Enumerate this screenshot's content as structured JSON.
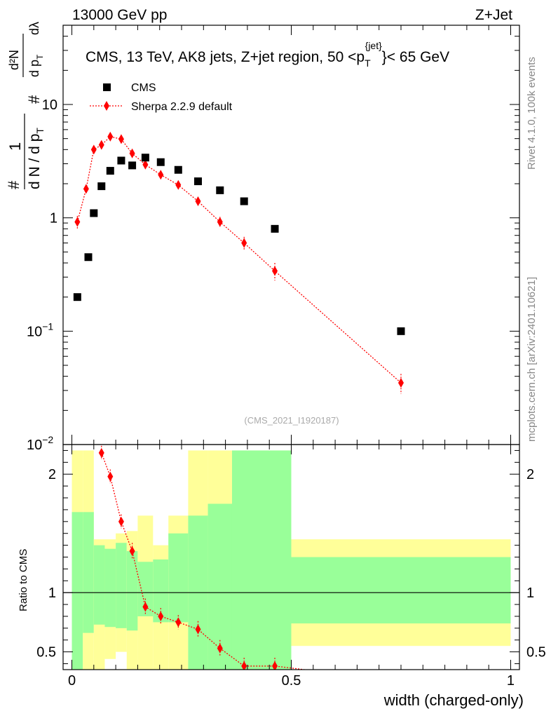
{
  "header": {
    "left": "13000 GeV pp",
    "right": "Z+Jet"
  },
  "side": {
    "rivet": "Rivet 4.1.0,  100k events",
    "mcplots": "mcplots.cern.ch [arXiv:2401.10621]"
  },
  "labels": {
    "analysis_id": "(CMS_2021_I1920187)",
    "ratio_ylabel": "Ratio to CMS",
    "xlabel": "width (charged-only)"
  },
  "legend": {
    "data": "CMS",
    "mc": "Sherpa 2.2.9 default"
  },
  "colors": {
    "data": "#000000",
    "mc": "#ff0000",
    "band_inner": "#99ff99",
    "band_outer": "#ffff99",
    "frame": "#000000",
    "side_text": "#888888"
  },
  "chart_data": [
    {
      "type": "scatter",
      "title": "CMS, 13 TeV, AK8 jets, Z+jet region, 50 < pT jet < 65 GeV",
      "title_parts": {
        "main": "CMS, 13 TeV, AK8 jets, Z+jet region, 50 <p",
        "sub": "T",
        "sup": "{jet}",
        "tail": "}< 65 GeV"
      },
      "ylabel_parts": {
        "frac_num": "1",
        "frac_den": "d N / d p",
        "den_sub": "T",
        "hash": "#",
        "d2n": "d²N",
        "dpt": "d p",
        "dpt_sub": "T",
        "dlambda": "dλ"
      },
      "yscale": "log",
      "xlim": [
        -0.02,
        1.02
      ],
      "ylim": [
        0.01,
        50
      ],
      "y_ticks": [
        {
          "value": 10,
          "label": "10"
        },
        {
          "value": 1,
          "label": "1"
        },
        {
          "value": 0.1,
          "label": "10",
          "exp": "−1"
        },
        {
          "value": 0.01,
          "label": "10",
          "exp": "−2"
        }
      ],
      "series": [
        {
          "name": "CMS",
          "marker": "square",
          "x": [
            0.0125,
            0.0375,
            0.05,
            0.0675,
            0.0875,
            0.1125,
            0.1375,
            0.1675,
            0.2025,
            0.2425,
            0.2875,
            0.3375,
            0.3925,
            0.4625,
            0.75
          ],
          "y": [
            0.2,
            0.45,
            1.1,
            1.9,
            2.6,
            3.2,
            2.9,
            3.4,
            3.1,
            2.65,
            2.1,
            1.75,
            1.4,
            0.8,
            0.1
          ]
        },
        {
          "name": "Sherpa 2.2.9 default",
          "marker": "diamond",
          "line": "dotted",
          "x": [
            0.0125,
            0.0325,
            0.05,
            0.0675,
            0.0875,
            0.1125,
            0.1375,
            0.1675,
            0.2025,
            0.2425,
            0.2875,
            0.3375,
            0.3925,
            0.4625,
            0.75
          ],
          "y": [
            0.92,
            1.8,
            4.0,
            4.4,
            5.2,
            4.95,
            3.7,
            2.95,
            2.4,
            1.95,
            1.4,
            0.92,
            0.6,
            0.34,
            0.035
          ],
          "err": [
            0.12,
            0.12,
            0.2,
            0.25,
            0.2,
            0.2,
            0.15,
            0.15,
            0.12,
            0.1,
            0.12,
            0.1,
            0.08,
            0.06,
            0.007
          ]
        }
      ]
    },
    {
      "type": "line",
      "title": "Ratio to CMS",
      "xlabel": "width (charged-only)",
      "ylabel": "Ratio to CMS",
      "xlim": [
        -0.02,
        1.02
      ],
      "ylim": [
        0.35,
        2.25
      ],
      "x_ticks": [
        {
          "value": 0,
          "label": "0"
        },
        {
          "value": 0.5,
          "label": "0.5"
        },
        {
          "value": 1,
          "label": "1"
        }
      ],
      "y_ticks": [
        {
          "value": 2,
          "label": "2"
        },
        {
          "value": 1,
          "label": "1"
        },
        {
          "value": 0.5,
          "label": "0.5"
        }
      ],
      "bands": [
        {
          "x0": 0.0,
          "x1": 0.025,
          "inner": [
            0.35,
            1.68
          ],
          "outer": [
            0.35,
            2.2
          ]
        },
        {
          "x0": 0.025,
          "x1": 0.05,
          "inner": [
            0.66,
            1.68
          ],
          "outer": [
            0.35,
            2.2
          ]
        },
        {
          "x0": 0.05,
          "x1": 0.075,
          "inner": [
            0.73,
            1.4
          ],
          "outer": [
            0.35,
            1.45
          ]
        },
        {
          "x0": 0.075,
          "x1": 0.1,
          "inner": [
            0.71,
            1.37
          ],
          "outer": [
            0.44,
            1.45
          ]
        },
        {
          "x0": 0.1,
          "x1": 0.125,
          "inner": [
            0.7,
            1.42
          ],
          "outer": [
            0.5,
            1.5
          ]
        },
        {
          "x0": 0.125,
          "x1": 0.15,
          "inner": [
            0.68,
            1.35
          ],
          "outer": [
            0.35,
            1.52
          ]
        },
        {
          "x0": 0.15,
          "x1": 0.185,
          "inner": [
            0.8,
            1.26
          ],
          "outer": [
            0.35,
            1.65
          ]
        },
        {
          "x0": 0.185,
          "x1": 0.22,
          "inner": [
            0.75,
            1.28
          ],
          "outer": [
            0.35,
            1.4
          ]
        },
        {
          "x0": 0.22,
          "x1": 0.265,
          "inner": [
            0.75,
            1.5
          ],
          "outer": [
            0.35,
            1.65
          ]
        },
        {
          "x0": 0.265,
          "x1": 0.31,
          "inner": [
            0.35,
            1.65
          ],
          "outer": [
            0.35,
            2.2
          ]
        },
        {
          "x0": 0.31,
          "x1": 0.365,
          "inner": [
            0.35,
            1.75
          ],
          "outer": [
            0.35,
            2.2
          ]
        },
        {
          "x0": 0.365,
          "x1": 0.5,
          "inner": [
            0.35,
            2.2
          ],
          "outer": [
            0.35,
            2.2
          ]
        },
        {
          "x0": 0.5,
          "x1": 1.0,
          "inner": [
            0.74,
            1.3
          ],
          "outer": [
            0.55,
            1.45
          ]
        }
      ],
      "series": [
        {
          "name": "Sherpa 2.2.9 default / CMS",
          "marker": "diamond",
          "line": "dotted",
          "x": [
            0.0675,
            0.0875,
            0.1125,
            0.1375,
            0.1675,
            0.2025,
            0.2425,
            0.2875,
            0.3375,
            0.3925,
            0.4625,
            0.53
          ],
          "y": [
            2.18,
            1.98,
            1.6,
            1.35,
            0.88,
            0.8,
            0.75,
            0.69,
            0.53,
            0.38,
            0.38,
            0.35
          ],
          "err": [
            0.06,
            0.06,
            0.06,
            0.07,
            0.07,
            0.07,
            0.06,
            0.07,
            0.07,
            0.07,
            0.07,
            0.0
          ]
        }
      ],
      "reference_line": 1
    }
  ]
}
